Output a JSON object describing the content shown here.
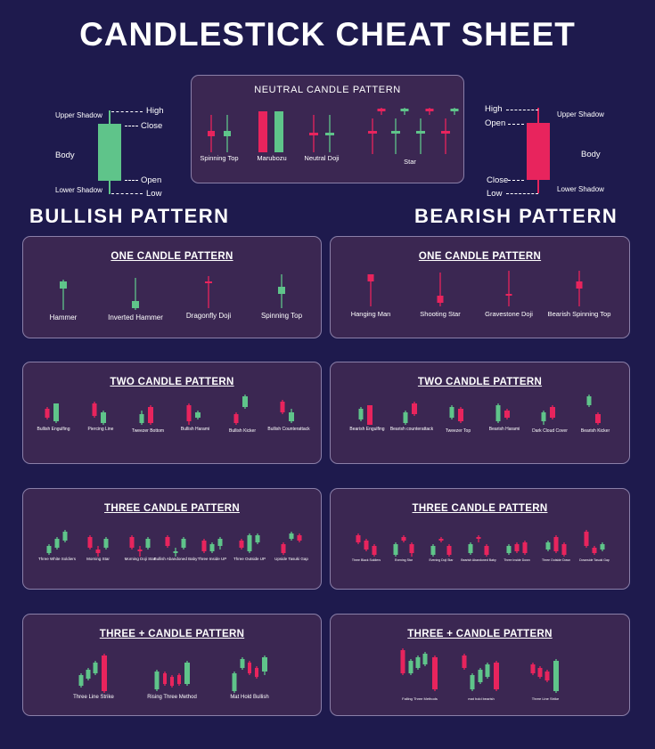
{
  "title": "CANDLESTICK CHEAT SHEET",
  "colors": {
    "bullish": "#5fc48a",
    "bearish": "#e8245d",
    "background": "#1e1a4d",
    "panel": "#3b2752"
  },
  "anatomy_bullish": {
    "upper_shadow": "Upper Shadow",
    "high": "High",
    "close": "Close",
    "body": "Body",
    "open": "Open",
    "lower_shadow": "Lower Shadow",
    "low": "Low"
  },
  "anatomy_bearish": {
    "high": "High",
    "open": "Open",
    "upper_shadow": "Upper Shadow",
    "body": "Body",
    "close": "Close",
    "low": "Low",
    "lower_shadow": "Lower Shadow"
  },
  "neutral": {
    "title": "NEUTRAL CANDLE PATTERN",
    "patterns": [
      "Spinning Top",
      "Marubozu",
      "Neutral Doji",
      "Star"
    ]
  },
  "bullish": {
    "heading": "BULLISH PATTERN",
    "one": {
      "title": "ONE CANDLE PATTERN",
      "patterns": [
        "Hammer",
        "Inverted Hammer",
        "Dragonfly Doji",
        "Spinning Top"
      ]
    },
    "two": {
      "title": "TWO CANDLE PATTERN",
      "patterns": [
        "Bullish Engulfing",
        "Piercing Line",
        "Tweezer Bottom",
        "Bullish Harami",
        "Bullish Kicker",
        "Bullish Counterattack"
      ]
    },
    "three": {
      "title": "THREE  CANDLE PATTERN",
      "patterns": [
        "Three White Soldiers",
        "Morning Star",
        "Morning Doji Star",
        "Bullish Abandoned Baby",
        "Three Inside UP",
        "Three Outside UP",
        "Upside Tasuki Gap"
      ]
    },
    "three_plus": {
      "title": "THREE + CANDLE PATTERN",
      "patterns": [
        "Three Line Strike",
        "Rising Three Method",
        "Mat Hold Bullish"
      ]
    }
  },
  "bearish": {
    "heading": "BEARISH PATTERN",
    "one": {
      "title": "ONE CANDLE PATTERN",
      "patterns": [
        "Hanging Man",
        "Shooting Star",
        "Gravestone Doji",
        "Bearish Spinning Top"
      ]
    },
    "two": {
      "title": "TWO CANDLE PATTERN",
      "patterns": [
        "Bearish Engulfing",
        "Bearish counterattack",
        "Tweezer Top",
        "Bearish Harami",
        "Dark Cloud Cover",
        "Bearish Kicker"
      ]
    },
    "three": {
      "title": "THREE  CANDLE PATTERN",
      "patterns": [
        "Three Black Soldiers",
        "Evening Star",
        "Evening Doji Star",
        "Bearish Abandoned Baby",
        "Three Inside Down",
        "Three Outside Down",
        "Downside Tasuki Gap"
      ]
    },
    "three_plus": {
      "title": "THREE + CANDLE PATTERN",
      "patterns": [
        "Falling Three Methods",
        "mat hold bearish",
        "Three Line Strike"
      ]
    }
  }
}
